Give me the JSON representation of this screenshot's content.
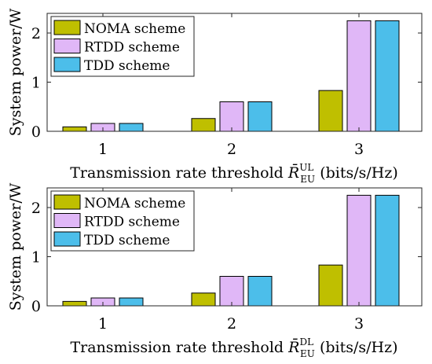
{
  "colors": {
    "series": [
      "#bfbf00",
      "#e0b7f7",
      "#4cbeea"
    ],
    "axis": "#262626"
  },
  "chart_data": [
    {
      "type": "bar",
      "categories": [
        "1",
        "2",
        "3"
      ],
      "series": [
        {
          "name": "NOMA scheme",
          "values": [
            0.09,
            0.26,
            0.83
          ]
        },
        {
          "name": "RTDD scheme",
          "values": [
            0.16,
            0.6,
            2.25
          ]
        },
        {
          "name": "TDD scheme",
          "values": [
            0.16,
            0.6,
            2.25
          ]
        }
      ],
      "ylim": [
        0,
        2.4
      ],
      "yticks": [
        "0",
        "1",
        "2"
      ],
      "ylabel": "System power/W",
      "xlabel": {
        "text": "Transmission rate threshold ",
        "symbol": "R̄",
        "sup": "UL",
        "sub": "EU",
        "unit": " (bits/s/Hz)"
      },
      "legend": "top-left",
      "grid": false
    },
    {
      "type": "bar",
      "categories": [
        "1",
        "2",
        "3"
      ],
      "series": [
        {
          "name": "NOMA scheme",
          "values": [
            0.09,
            0.26,
            0.83
          ]
        },
        {
          "name": "RTDD scheme",
          "values": [
            0.16,
            0.6,
            2.25
          ]
        },
        {
          "name": "TDD scheme",
          "values": [
            0.16,
            0.6,
            2.25
          ]
        }
      ],
      "ylim": [
        0,
        2.4
      ],
      "yticks": [
        "0",
        "1",
        "2"
      ],
      "ylabel": "System power/W",
      "xlabel": {
        "text": "Transmission rate threshold ",
        "symbol": "R̄",
        "sup": "DL",
        "sub": "EU",
        "unit": " (bits/s/Hz)"
      },
      "legend": "top-left",
      "grid": false
    }
  ]
}
